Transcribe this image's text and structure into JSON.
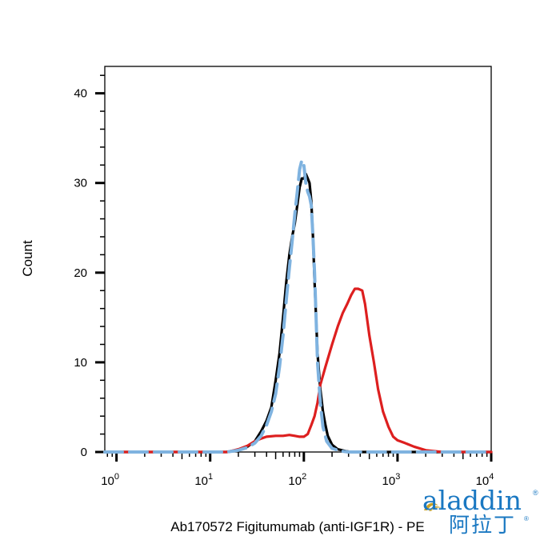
{
  "chart_data": {
    "type": "line",
    "title": "",
    "xlabel": "Ab170572 Figitumumab (anti-IGF1R) - PE",
    "ylabel": "Count",
    "x_scale": "log",
    "xlim": [
      0.75,
      10000
    ],
    "ylim": [
      0,
      43
    ],
    "grid": false,
    "x_ticks": [
      {
        "value": 1,
        "base": "10",
        "exp": "0"
      },
      {
        "value": 10,
        "base": "10",
        "exp": "1"
      },
      {
        "value": 100,
        "base": "10",
        "exp": "2"
      },
      {
        "value": 1000,
        "base": "10",
        "exp": "3"
      },
      {
        "value": 10000,
        "base": "10",
        "exp": "4"
      }
    ],
    "y_ticks": [
      0,
      10,
      20,
      30,
      40
    ],
    "series": [
      {
        "color": "#000000",
        "style": "solid",
        "points": [
          [
            0.75,
            0
          ],
          [
            15,
            0
          ],
          [
            20,
            0.2
          ],
          [
            25,
            0.6
          ],
          [
            30,
            1.2
          ],
          [
            35,
            2.3
          ],
          [
            40,
            3.5
          ],
          [
            45,
            5
          ],
          [
            50,
            8
          ],
          [
            55,
            11
          ],
          [
            60,
            15
          ],
          [
            65,
            19
          ],
          [
            70,
            22
          ],
          [
            75,
            24
          ],
          [
            80,
            25.5
          ],
          [
            85,
            27.5
          ],
          [
            90,
            29.5
          ],
          [
            95,
            30.5
          ],
          [
            100,
            30.5
          ],
          [
            105,
            31
          ],
          [
            110,
            30.5
          ],
          [
            115,
            30
          ],
          [
            120,
            28
          ],
          [
            125,
            24
          ],
          [
            130,
            19
          ],
          [
            135,
            15
          ],
          [
            140,
            11
          ],
          [
            150,
            7
          ],
          [
            160,
            4.5
          ],
          [
            170,
            3
          ],
          [
            180,
            1.8
          ],
          [
            200,
            0.8
          ],
          [
            230,
            0.3
          ],
          [
            280,
            0.1
          ],
          [
            320,
            0
          ],
          [
            10000,
            0
          ]
        ]
      },
      {
        "color": "#7fb3e0",
        "style": "dashed",
        "points": [
          [
            0.75,
            0
          ],
          [
            15,
            0
          ],
          [
            20,
            0.2
          ],
          [
            25,
            0.5
          ],
          [
            30,
            1
          ],
          [
            35,
            1.8
          ],
          [
            40,
            3
          ],
          [
            45,
            4.5
          ],
          [
            50,
            6.5
          ],
          [
            55,
            9.5
          ],
          [
            60,
            13
          ],
          [
            65,
            17
          ],
          [
            70,
            20.5
          ],
          [
            75,
            23.5
          ],
          [
            80,
            26.5
          ],
          [
            85,
            29
          ],
          [
            90,
            31.5
          ],
          [
            95,
            32.5
          ],
          [
            100,
            32
          ],
          [
            105,
            30
          ],
          [
            110,
            29
          ],
          [
            115,
            28.5
          ],
          [
            120,
            27.5
          ],
          [
            125,
            24
          ],
          [
            130,
            20
          ],
          [
            135,
            15
          ],
          [
            140,
            10
          ],
          [
            150,
            5.5
          ],
          [
            160,
            2.8
          ],
          [
            175,
            1.2
          ],
          [
            200,
            0.4
          ],
          [
            250,
            0.1
          ],
          [
            300,
            0
          ],
          [
            10000,
            0
          ]
        ]
      },
      {
        "color": "#dd1f1f",
        "style": "solid",
        "points": [
          [
            0.75,
            0
          ],
          [
            15,
            0
          ],
          [
            20,
            0.3
          ],
          [
            25,
            0.7
          ],
          [
            30,
            1.2
          ],
          [
            35,
            1.5
          ],
          [
            40,
            1.7
          ],
          [
            50,
            1.8
          ],
          [
            60,
            1.8
          ],
          [
            70,
            1.9
          ],
          [
            80,
            1.8
          ],
          [
            90,
            1.7
          ],
          [
            100,
            1.7
          ],
          [
            110,
            2
          ],
          [
            120,
            3
          ],
          [
            130,
            4
          ],
          [
            140,
            5.5
          ],
          [
            150,
            7.5
          ],
          [
            170,
            9.5
          ],
          [
            200,
            12
          ],
          [
            230,
            14
          ],
          [
            260,
            15.5
          ],
          [
            290,
            16.5
          ],
          [
            320,
            17.5
          ],
          [
            350,
            18.2
          ],
          [
            380,
            18.2
          ],
          [
            420,
            18
          ],
          [
            450,
            16.5
          ],
          [
            500,
            13
          ],
          [
            560,
            10
          ],
          [
            620,
            7
          ],
          [
            700,
            4.5
          ],
          [
            800,
            2.8
          ],
          [
            900,
            1.7
          ],
          [
            1000,
            1.3
          ],
          [
            1200,
            1
          ],
          [
            1500,
            0.6
          ],
          [
            2000,
            0.2
          ],
          [
            3000,
            0
          ],
          [
            10000,
            0
          ]
        ]
      }
    ]
  },
  "brand": {
    "name": "aladdin",
    "cn": "阿拉丁",
    "reg": "®"
  }
}
